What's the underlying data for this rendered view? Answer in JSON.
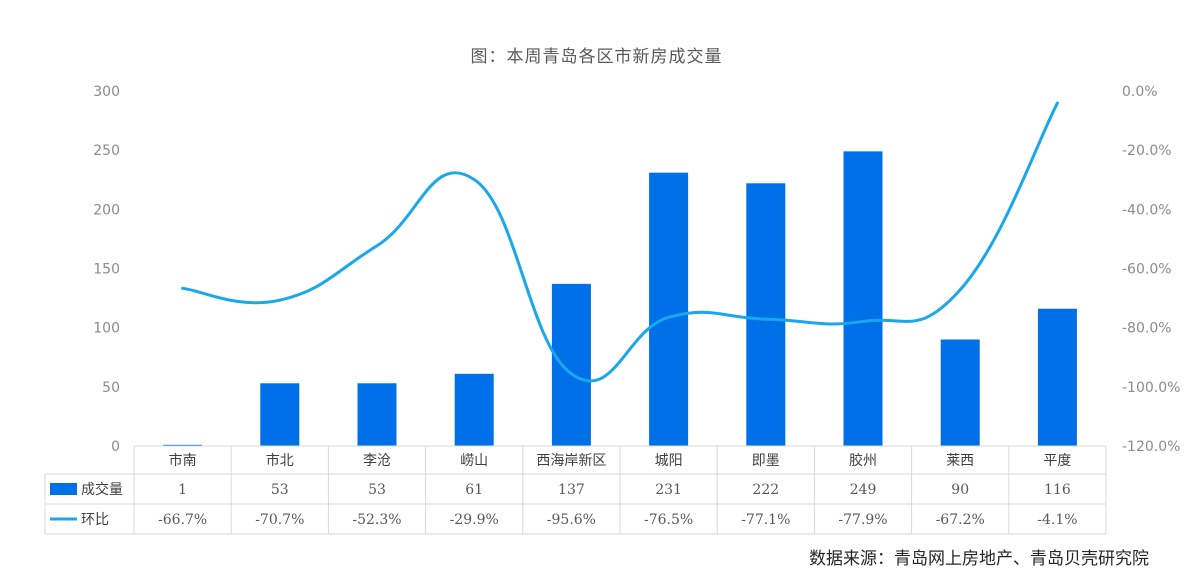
{
  "title": "图：本周青岛各区市新房成交量",
  "source": "数据来源：青岛网上房地产、青岛贝壳研究院",
  "colors": {
    "bar": "#0070e8",
    "line": "#1aa7ec"
  },
  "chart_data": {
    "type": "bar",
    "categories": [
      "市南",
      "市北",
      "李沧",
      "崂山",
      "西海岸新区",
      "城阳",
      "即墨",
      "胶州",
      "莱西",
      "平度"
    ],
    "series": [
      {
        "name": "成交量",
        "type": "bar",
        "axis": "left",
        "values": [
          1,
          53,
          53,
          61,
          137,
          231,
          222,
          249,
          90,
          116
        ],
        "labels": [
          "1",
          "53",
          "53",
          "61",
          "137",
          "231",
          "222",
          "249",
          "90",
          "116"
        ]
      },
      {
        "name": "环比",
        "type": "line",
        "axis": "right",
        "values": [
          -66.7,
          -70.7,
          -52.3,
          -29.9,
          -95.6,
          -76.5,
          -77.1,
          -77.9,
          -67.2,
          -4.1
        ],
        "labels": [
          "-66.7%",
          "-70.7%",
          "-52.3%",
          "-29.9%",
          "-95.6%",
          "-76.5%",
          "-77.1%",
          "-77.9%",
          "-67.2%",
          "-4.1%"
        ]
      }
    ],
    "y_left": {
      "lim": [
        0,
        300
      ],
      "ticks": [
        "300",
        "250",
        "200",
        "150",
        "100",
        "50",
        "0"
      ],
      "tick_values": [
        300,
        250,
        200,
        150,
        100,
        50,
        0
      ]
    },
    "y_right": {
      "lim": [
        -120,
        0
      ],
      "ticks": [
        "0.0%",
        "-20.0%",
        "-40.0%",
        "-60.0%",
        "-80.0%",
        "-100.0%",
        "-120.0%"
      ],
      "tick_values": [
        0,
        -20,
        -40,
        -60,
        -80,
        -100,
        -120
      ]
    },
    "grid": false,
    "legend": "data-table"
  }
}
